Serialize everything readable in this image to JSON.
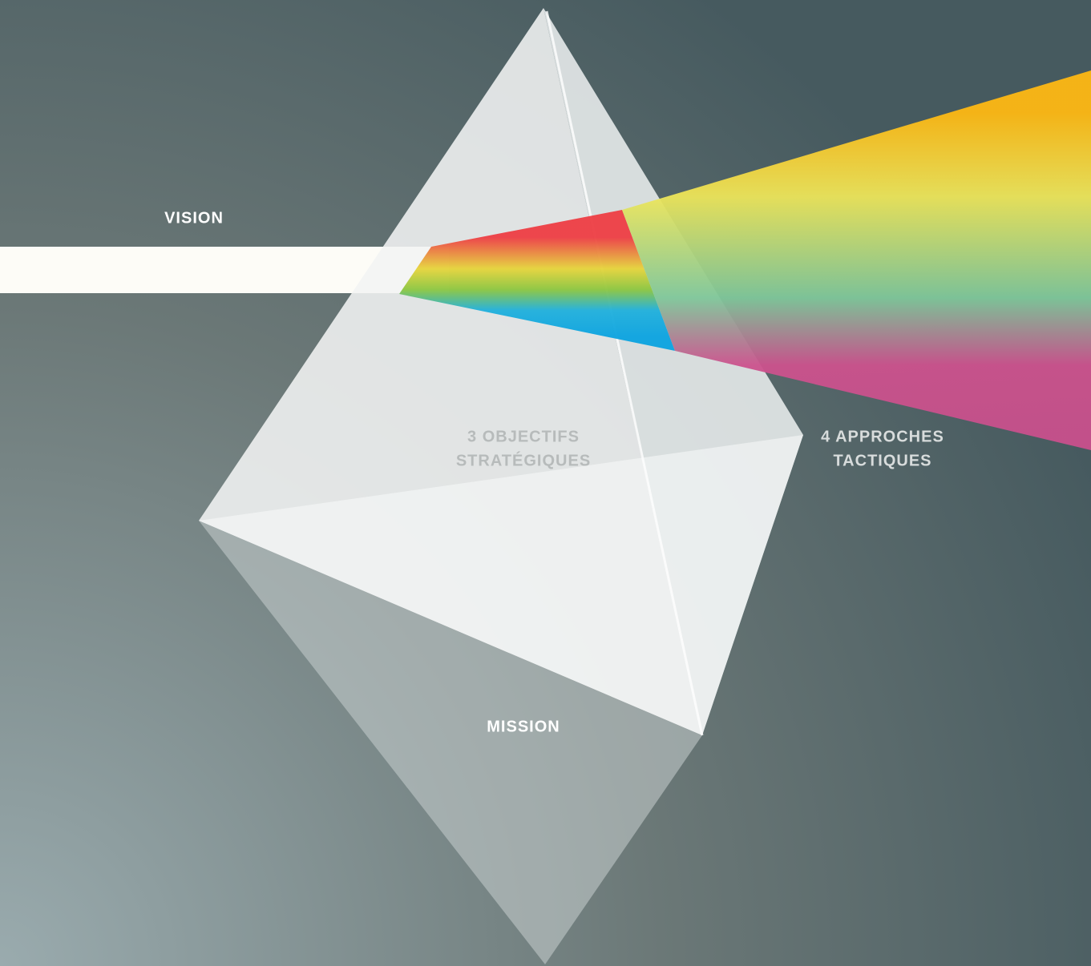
{
  "labels": {
    "vision": "VISION",
    "objectives": [
      "3 OBJECTIFS",
      "STRATÉGIQUES"
    ],
    "approaches": [
      "4 APPROCHES",
      "TACTIQUES"
    ],
    "mission": "MISSION"
  }
}
